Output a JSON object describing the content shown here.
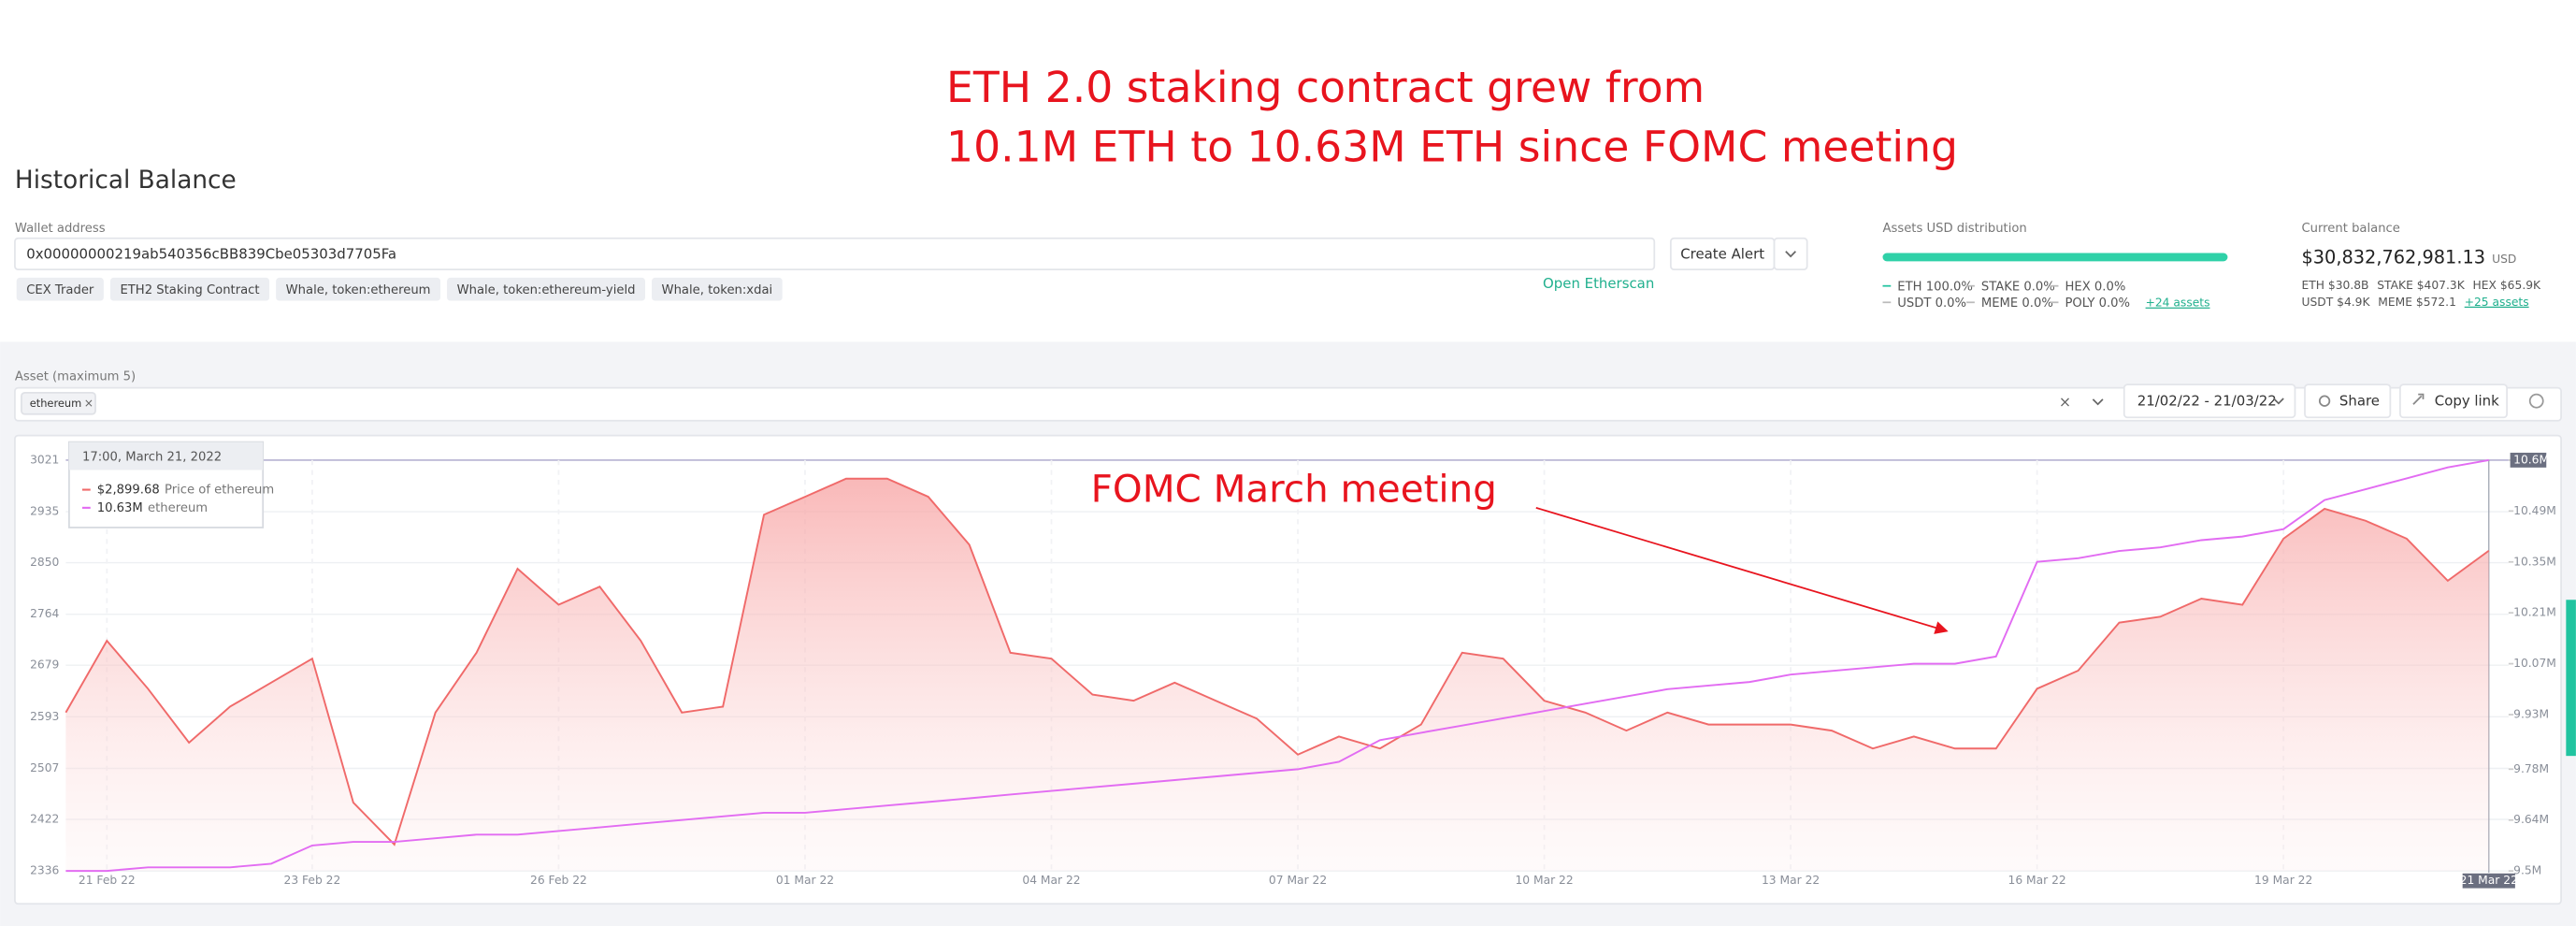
{
  "annotation": {
    "lines": [
      "ETH 2.0 staking contract grew from",
      "10.1M ETH to 10.63M ETH since FOMC meeting"
    ],
    "arrow_label": "FOMC March meeting"
  },
  "header": {
    "title": "Historical Balance"
  },
  "wallet": {
    "label": "Wallet address",
    "address": "0x00000000219ab540356cBB839Cbe05303d7705Fa",
    "tags": [
      "CEX Trader",
      "ETH2 Staking Contract",
      "Whale, token:ethereum",
      "Whale, token:ethereum-yield",
      "Whale, token:xdai"
    ],
    "create_alert": "Create Alert",
    "etherscan": "Open Etherscan"
  },
  "distribution": {
    "label": "Assets USD distribution",
    "items": [
      "ETH 100.0%",
      "STAKE 0.0%",
      "HEX 0.0%",
      "USDT 0.0%",
      "MEME 0.0%",
      "POLY 0.0%"
    ],
    "more": "+24 assets"
  },
  "balance": {
    "label": "Current balance",
    "value": "$30,832,762,981.13",
    "currency": "USD",
    "items": [
      "ETH $30.8B",
      "STAKE $407.3K",
      "HEX $65.9K",
      "USDT $4.9K",
      "MEME $572.1"
    ],
    "more": "+25 assets"
  },
  "filters": {
    "asset_label": "Asset (maximum 5)",
    "asset": "ethereum",
    "range": "21/02/22 - 21/03/22",
    "share": "Share",
    "copy": "Copy link"
  },
  "chart_data": {
    "type": "line",
    "categories": [
      null,
      "21 Feb 22",
      null,
      null,
      null,
      null,
      "23 Feb 22",
      null,
      null,
      null,
      null,
      null,
      "26 Feb 22",
      null,
      null,
      null,
      null,
      null,
      "01 Mar 22",
      null,
      null,
      null,
      null,
      null,
      "04 Mar 22",
      null,
      null,
      null,
      null,
      null,
      "07 Mar 22",
      null,
      null,
      null,
      null,
      null,
      "10 Mar 22",
      null,
      null,
      null,
      null,
      null,
      "13 Mar 22",
      null,
      null,
      null,
      null,
      null,
      "16 Mar 22",
      null,
      null,
      null,
      null,
      null,
      "19 Mar 22",
      null,
      null,
      null,
      null,
      "21 Mar 22"
    ],
    "series": [
      {
        "name": "Price of ethereum",
        "color": "#f06a6a",
        "fill": true,
        "values": [
          2600,
          2720,
          2640,
          2550,
          2610,
          2650,
          2690,
          2450,
          2380,
          2600,
          2700,
          2840,
          2780,
          2810,
          2720,
          2600,
          2610,
          2930,
          2960,
          2990,
          2990,
          2960,
          2880,
          2700,
          2690,
          2630,
          2620,
          2650,
          2620,
          2590,
          2530,
          2560,
          2540,
          2580,
          2700,
          2690,
          2620,
          2600,
          2570,
          2600,
          2580,
          2580,
          2580,
          2570,
          2540,
          2560,
          2540,
          2540,
          2640,
          2670,
          2750,
          2760,
          2790,
          2780,
          2890,
          2940,
          2920,
          2890,
          2820,
          2870
        ]
      },
      {
        "name": "ethereum",
        "color": "#e26cf2",
        "axis": "y2",
        "values": [
          9.5,
          9.5,
          9.51,
          9.51,
          9.51,
          9.52,
          9.57,
          9.58,
          9.58,
          9.59,
          9.6,
          9.6,
          9.61,
          9.62,
          9.63,
          9.64,
          9.65,
          9.66,
          9.66,
          9.67,
          9.68,
          9.69,
          9.7,
          9.71,
          9.72,
          9.73,
          9.74,
          9.75,
          9.76,
          9.77,
          9.78,
          9.8,
          9.86,
          9.88,
          9.9,
          9.92,
          9.94,
          9.96,
          9.98,
          10.0,
          10.01,
          10.02,
          10.04,
          10.05,
          10.06,
          10.07,
          10.07,
          10.09,
          10.35,
          10.36,
          10.38,
          10.39,
          10.41,
          10.42,
          10.44,
          10.52,
          10.55,
          10.58,
          10.61,
          10.63
        ]
      }
    ],
    "ylim": [
      2336,
      3021
    ],
    "yticks": [
      2336,
      2422,
      2507,
      2593,
      2679,
      2764,
      2850,
      2935,
      3021
    ],
    "y2lim": [
      9.5,
      10.63
    ],
    "y2ticks": [
      {
        "value": 9.5,
        "label": "9.5M"
      },
      {
        "value": 9.64,
        "label": "9.64M"
      },
      {
        "value": 9.78,
        "label": "9.78M"
      },
      {
        "value": 9.93,
        "label": "9.93M"
      },
      {
        "value": 10.07,
        "label": "10.07M"
      },
      {
        "value": 10.21,
        "label": "10.21M"
      },
      {
        "value": 10.35,
        "label": "10.35M"
      },
      {
        "value": 10.49,
        "label": "10.49M"
      },
      {
        "value": 10.63,
        "label": "10.6M"
      }
    ],
    "grid": true,
    "tooltip": {
      "title": "17:00, March 21, 2022",
      "items": [
        {
          "value": "$2,899.68"
        },
        {
          "value": "10.63M"
        }
      ]
    }
  }
}
